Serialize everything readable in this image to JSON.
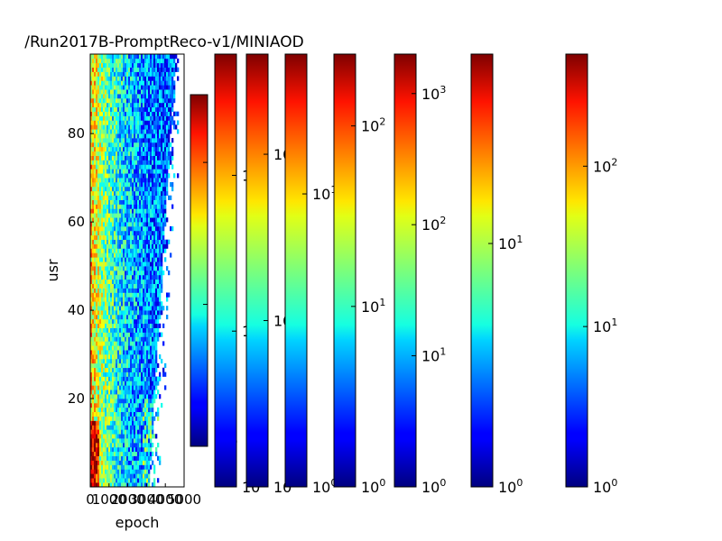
{
  "chart_data": {
    "type": "heatmap",
    "title": "/Run2017B-PromptReco-v1/MINIAOD",
    "xlabel": "epoch",
    "ylabel": "usr",
    "x_ticks": [
      "0",
      "1000",
      "2000",
      "3000",
      "4000",
      "5000"
    ],
    "x_tick_values": [
      0,
      1000,
      2000,
      3000,
      4000,
      5000
    ],
    "xlim": [
      0,
      5000
    ],
    "y_ticks": [
      "20",
      "40",
      "60",
      "80"
    ],
    "y_tick_values": [
      20,
      40,
      60,
      80
    ],
    "ylim": [
      0,
      98
    ],
    "colormap": "jet",
    "color_scale": "log",
    "colorbars": [
      {
        "ticks": [
          {
            "label": "10",
            "exp": "0",
            "v": 1
          },
          {
            "label": "10",
            "exp": "1",
            "v": 10
          },
          {
            "label": "10",
            "exp": "2",
            "v": 100
          }
        ],
        "vmin": 1,
        "vmax": 300
      },
      {
        "ticks": [
          {
            "label": "10",
            "exp": "0",
            "v": 1
          },
          {
            "label": "10",
            "exp": "1",
            "v": 10
          },
          {
            "label": "10",
            "exp": "2",
            "v": 100
          }
        ],
        "vmin": 1,
        "vmax": 600
      },
      {
        "ticks": [
          {
            "label": "10",
            "exp": "0",
            "v": 1
          },
          {
            "label": "10",
            "exp": "1",
            "v": 10
          },
          {
            "label": "10",
            "exp": "2",
            "v": 100
          }
        ],
        "vmin": 1,
        "vmax": 400
      },
      {
        "ticks": [
          {
            "label": "10",
            "exp": "0",
            "v": 1
          },
          {
            "label": "10",
            "exp": "1",
            "v": 10
          }
        ],
        "vmin": 1,
        "vmax": 30
      },
      {
        "ticks": [
          {
            "label": "10",
            "exp": "0",
            "v": 1
          },
          {
            "label": "10",
            "exp": "1",
            "v": 10
          },
          {
            "label": "10",
            "exp": "2",
            "v": 100
          }
        ],
        "vmin": 1,
        "vmax": 250
      },
      {
        "ticks": [
          {
            "label": "10",
            "exp": "0",
            "v": 1
          },
          {
            "label": "10",
            "exp": "1",
            "v": 10
          },
          {
            "label": "10",
            "exp": "2",
            "v": 100
          },
          {
            "label": "10",
            "exp": "3",
            "v": 1000
          }
        ],
        "vmin": 1,
        "vmax": 2000
      },
      {
        "ticks": [
          {
            "label": "10",
            "exp": "0",
            "v": 1
          },
          {
            "label": "10",
            "exp": "1",
            "v": 10
          }
        ],
        "vmin": 1,
        "vmax": 60
      },
      {
        "ticks": [
          {
            "label": "10",
            "exp": "0",
            "v": 1
          },
          {
            "label": "10",
            "exp": "1",
            "v": 10
          },
          {
            "label": "10",
            "exp": "2",
            "v": 100
          }
        ],
        "vmin": 1,
        "vmax": 500
      }
    ]
  }
}
